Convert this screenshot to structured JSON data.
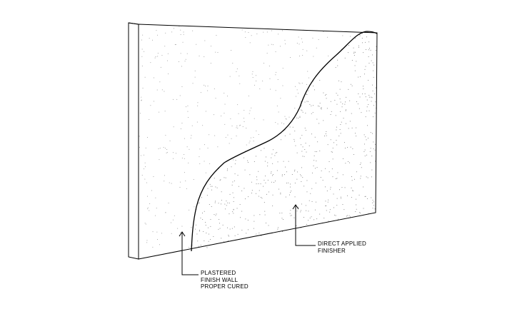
{
  "diagram": {
    "title": "",
    "callouts": {
      "plastered": {
        "lines": [
          "PLASTERED",
          "FINISH WALL",
          "PROPER CURED"
        ]
      },
      "direct_applied": {
        "lines": [
          "DIRECT APPLIED",
          "FINISHER"
        ]
      }
    }
  },
  "colors": {
    "line": "#000000",
    "background": "#ffffff",
    "stipple_light": "#9a9a9a",
    "stipple_dense": "#7a7a7a"
  }
}
